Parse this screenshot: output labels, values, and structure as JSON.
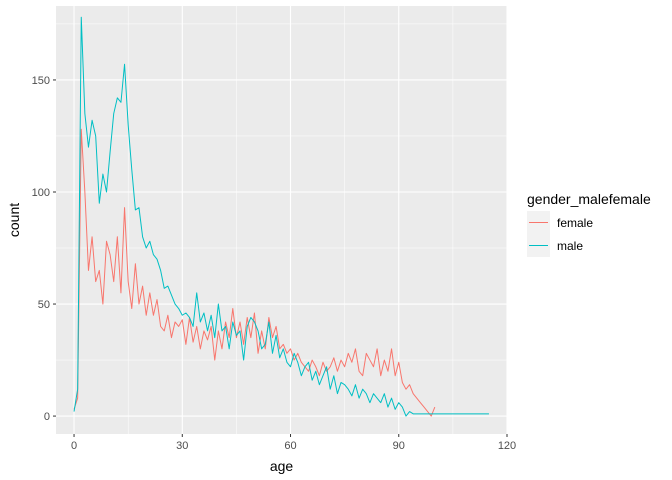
{
  "chart_data": {
    "type": "line",
    "xlabel": "age",
    "ylabel": "count",
    "xlim": [
      -5,
      120
    ],
    "ylim": [
      -8,
      183
    ],
    "x_ticks": [
      0,
      30,
      60,
      90,
      120
    ],
    "y_ticks": [
      0,
      50,
      100,
      150
    ],
    "grid": true,
    "legend": {
      "title": "gender_malefemale",
      "placement": "right",
      "entries": [
        "female",
        "male"
      ]
    },
    "colors": {
      "female": "#F8766D",
      "male": "#00BFC4",
      "panel": "#EBEBEB",
      "grid": "#FFFFFF"
    },
    "series": [
      {
        "name": "female",
        "color": "#F8766D",
        "x": [
          0,
          1,
          2,
          3,
          4,
          5,
          6,
          7,
          8,
          9,
          10,
          11,
          12,
          13,
          14,
          15,
          16,
          17,
          18,
          19,
          20,
          21,
          22,
          23,
          24,
          25,
          26,
          27,
          28,
          29,
          30,
          31,
          32,
          33,
          34,
          35,
          36,
          37,
          38,
          39,
          40,
          41,
          42,
          43,
          44,
          45,
          46,
          47,
          48,
          49,
          50,
          51,
          52,
          53,
          54,
          55,
          56,
          57,
          58,
          59,
          60,
          61,
          62,
          63,
          64,
          65,
          66,
          67,
          68,
          69,
          70,
          71,
          72,
          73,
          74,
          75,
          76,
          77,
          78,
          79,
          80,
          81,
          82,
          83,
          84,
          85,
          86,
          87,
          88,
          89,
          90,
          91,
          92,
          93,
          94,
          95,
          96,
          97,
          98,
          99,
          100
        ],
        "values": [
          3,
          8,
          128,
          100,
          65,
          80,
          60,
          65,
          50,
          78,
          72,
          60,
          80,
          55,
          93,
          60,
          48,
          68,
          50,
          58,
          45,
          55,
          45,
          52,
          40,
          38,
          45,
          35,
          42,
          40,
          43,
          32,
          44,
          33,
          40,
          30,
          38,
          34,
          40,
          25,
          38,
          30,
          42,
          35,
          48,
          35,
          42,
          32,
          44,
          35,
          46,
          28,
          38,
          30,
          44,
          35,
          40,
          30,
          32,
          28,
          30,
          25,
          28,
          24,
          22,
          20,
          25,
          22,
          18,
          24,
          20,
          22,
          26,
          20,
          25,
          22,
          28,
          24,
          30,
          20,
          18,
          28,
          25,
          22,
          30,
          18,
          25,
          20,
          30,
          18,
          24,
          15,
          12,
          14,
          10,
          8,
          6,
          4,
          2,
          0,
          4
        ]
      },
      {
        "name": "male",
        "color": "#00BFC4",
        "x": [
          0,
          1,
          2,
          3,
          4,
          5,
          6,
          7,
          8,
          9,
          10,
          11,
          12,
          13,
          14,
          15,
          16,
          17,
          18,
          19,
          20,
          21,
          22,
          23,
          24,
          25,
          26,
          27,
          28,
          29,
          30,
          31,
          32,
          33,
          34,
          35,
          36,
          37,
          38,
          39,
          40,
          41,
          42,
          43,
          44,
          45,
          46,
          47,
          48,
          49,
          50,
          51,
          52,
          53,
          54,
          55,
          56,
          57,
          58,
          59,
          60,
          61,
          62,
          63,
          64,
          65,
          66,
          67,
          68,
          69,
          70,
          71,
          72,
          73,
          74,
          75,
          76,
          77,
          78,
          79,
          80,
          81,
          82,
          83,
          84,
          85,
          86,
          87,
          88,
          89,
          90,
          91,
          92,
          93,
          94,
          95,
          96,
          97,
          98,
          99,
          100,
          101,
          102,
          103,
          104,
          105,
          106,
          107,
          108,
          109,
          110,
          111,
          112,
          113,
          114,
          115
        ],
        "values": [
          2,
          12,
          178,
          135,
          120,
          132,
          125,
          95,
          108,
          100,
          118,
          135,
          142,
          140,
          157,
          130,
          110,
          92,
          93,
          80,
          75,
          78,
          72,
          70,
          65,
          57,
          58,
          54,
          50,
          48,
          45,
          46,
          44,
          40,
          55,
          42,
          46,
          38,
          45,
          35,
          50,
          38,
          40,
          30,
          42,
          36,
          38,
          25,
          40,
          44,
          42,
          38,
          30,
          32,
          42,
          28,
          36,
          26,
          30,
          24,
          22,
          28,
          24,
          18,
          22,
          24,
          16,
          20,
          14,
          18,
          22,
          12,
          18,
          10,
          15,
          14,
          12,
          9,
          14,
          8,
          12,
          10,
          6,
          10,
          8,
          6,
          10,
          4,
          8,
          3,
          6,
          4,
          0,
          2,
          1,
          1,
          1,
          1,
          1,
          1,
          1,
          1,
          1,
          1,
          1,
          1,
          1,
          1,
          1,
          1,
          1,
          1,
          1,
          1,
          1,
          1
        ]
      }
    ]
  }
}
